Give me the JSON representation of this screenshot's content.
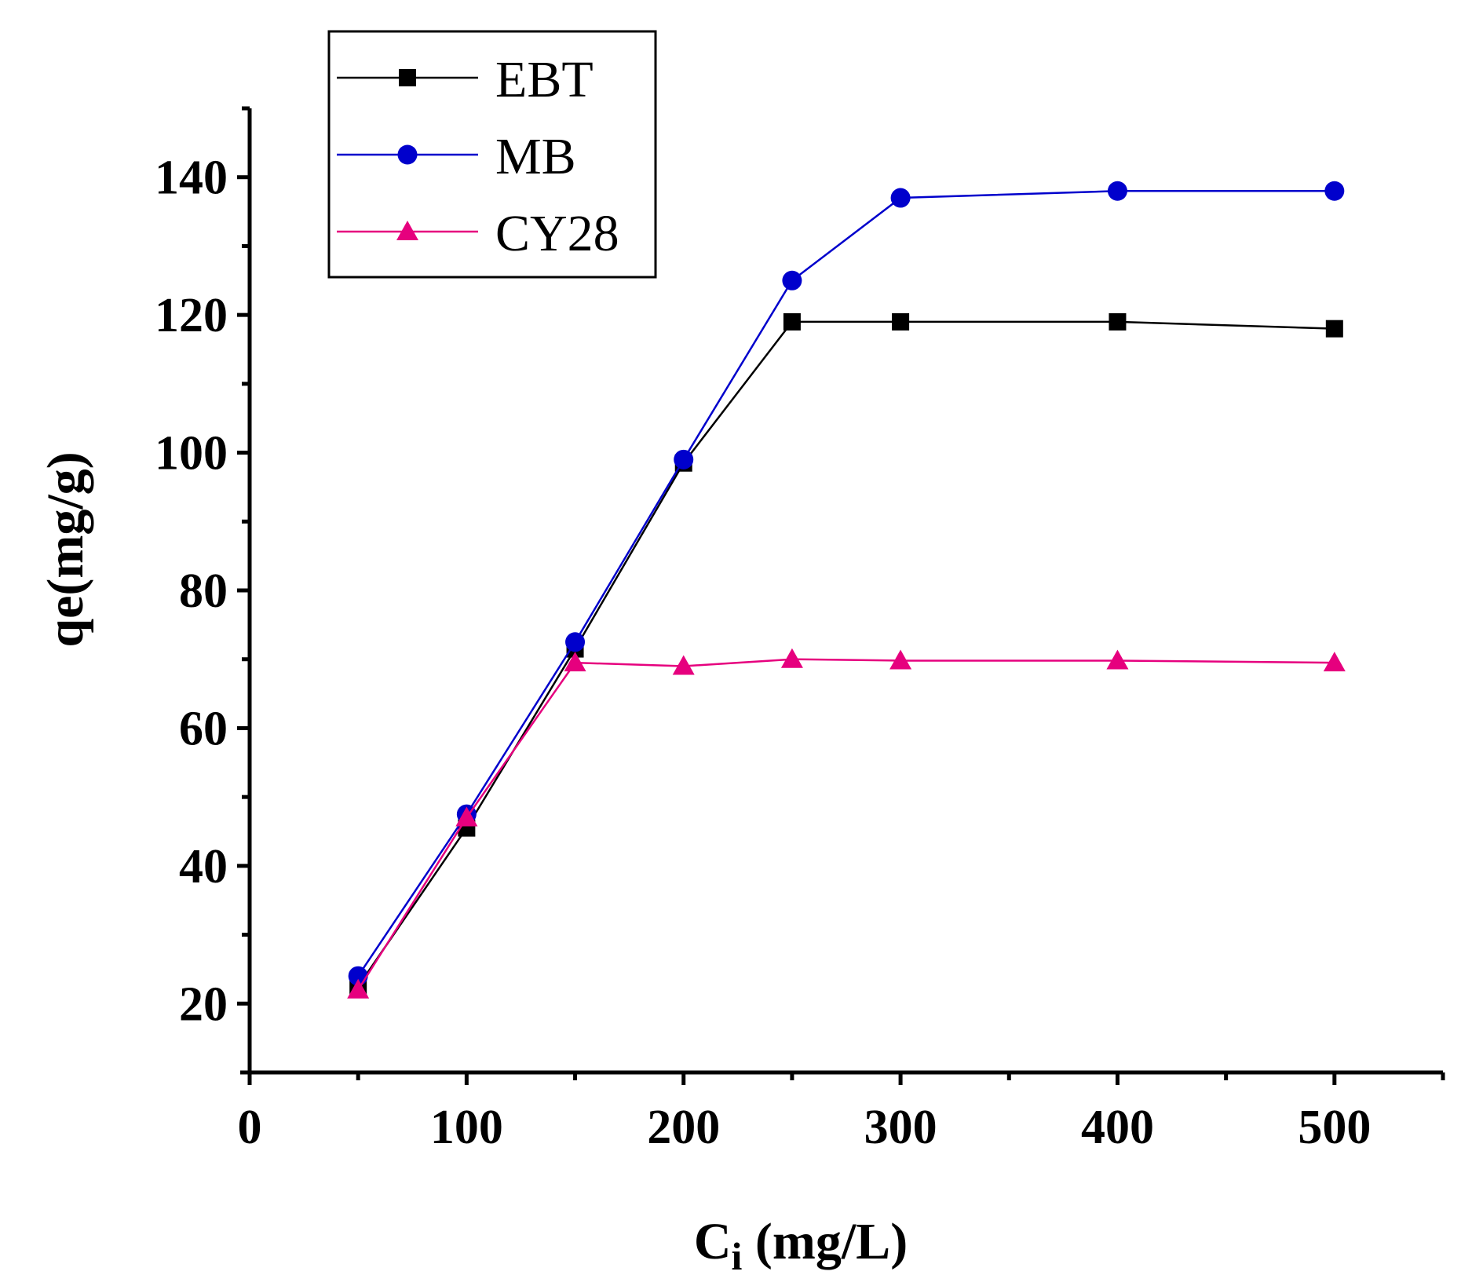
{
  "chart_data": {
    "type": "line",
    "title": "",
    "xlabel": "C",
    "xlabel_sub": "i",
    "xlabel_unit": " (mg/L)",
    "ylabel": "qe(mg/g)",
    "xlim": [
      0,
      550
    ],
    "ylim": [
      10,
      150
    ],
    "xticks": [
      0,
      100,
      200,
      300,
      400,
      500
    ],
    "yticks": [
      20,
      40,
      60,
      80,
      100,
      120,
      140
    ],
    "legend_position": "top-left",
    "series": [
      {
        "name": "EBT",
        "color": "#000000",
        "marker": "square",
        "x": [
          50,
          100,
          150,
          200,
          250,
          300,
          400,
          500
        ],
        "y": [
          22.5,
          45.5,
          71.5,
          98.5,
          119,
          119,
          119,
          118
        ]
      },
      {
        "name": "MB",
        "color": "#0000cc",
        "marker": "circle",
        "x": [
          50,
          100,
          150,
          200,
          250,
          300,
          400,
          500
        ],
        "y": [
          24,
          47.5,
          72.5,
          99,
          125,
          137,
          138,
          138
        ]
      },
      {
        "name": "CY28",
        "color": "#e6007e",
        "marker": "triangle",
        "x": [
          50,
          100,
          150,
          200,
          250,
          300,
          400,
          500
        ],
        "y": [
          22,
          47,
          69.5,
          69,
          70,
          69.8,
          69.8,
          69.5
        ]
      }
    ]
  }
}
